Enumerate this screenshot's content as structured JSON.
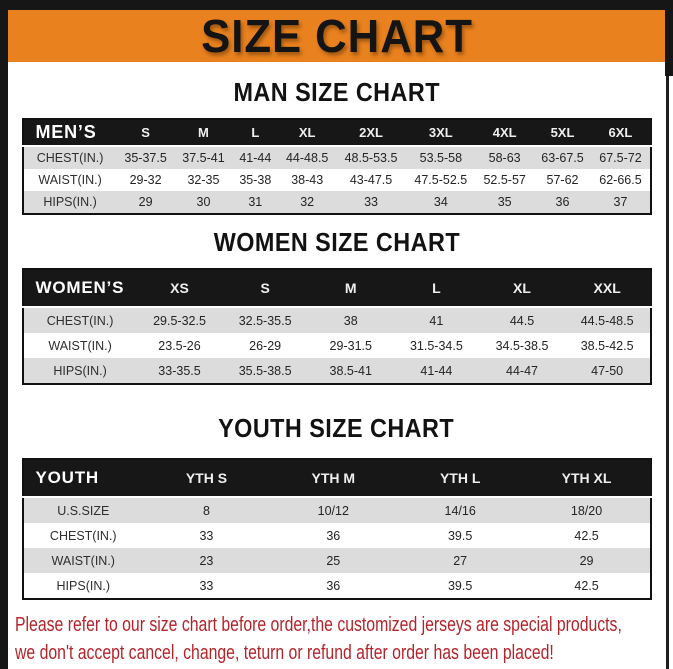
{
  "banner": {
    "title": "SIZE CHART",
    "bg_color": "#e8811e",
    "text_color": "#141414"
  },
  "colors": {
    "frame_black": "#161616",
    "header_black": "#171717",
    "row_gray": "#dcdcdc",
    "footer_red": "#b4232a"
  },
  "sections": {
    "men": {
      "heading": "MAN SIZE CHART",
      "header": [
        "MEN’S",
        "S",
        "M",
        "L",
        "XL",
        "2XL",
        "3XL",
        "4XL",
        "5XL",
        "6XL"
      ],
      "rows": [
        [
          "CHEST(IN.)",
          "35-37.5",
          "37.5-41",
          "41-44",
          "44-48.5",
          "48.5-53.5",
          "53.5-58",
          "58-63",
          "63-67.5",
          "67.5-72"
        ],
        [
          "WAIST(IN.)",
          "29-32",
          "32-35",
          "35-38",
          "38-43",
          "43-47.5",
          "47.5-52.5",
          "52.5-57",
          "57-62",
          "62-66.5"
        ],
        [
          "HIPS(IN.)",
          "29",
          "30",
          "31",
          "32",
          "33",
          "34",
          "35",
          "36",
          "37"
        ]
      ]
    },
    "women": {
      "heading": "WOMEN SIZE CHART",
      "header": [
        "WOMEN’S",
        "XS",
        "S",
        "M",
        "L",
        "XL",
        "XXL"
      ],
      "rows": [
        [
          "CHEST(IN.)",
          "29.5-32.5",
          "32.5-35.5",
          "38",
          "41",
          "44.5",
          "44.5-48.5"
        ],
        [
          "WAIST(IN.)",
          "23.5-26",
          "26-29",
          "29-31.5",
          "31.5-34.5",
          "34.5-38.5",
          "38.5-42.5"
        ],
        [
          "HIPS(IN.)",
          "33-35.5",
          "35.5-38.5",
          "38.5-41",
          "41-44",
          "44-47",
          "47-50"
        ]
      ]
    },
    "youth": {
      "heading": "YOUTH SIZE CHART",
      "header": [
        "YOUTH",
        "YTH S",
        "YTH M",
        "YTH L",
        "YTH XL"
      ],
      "rows": [
        [
          "U.S.SIZE",
          "8",
          "10/12",
          "14/16",
          "18/20"
        ],
        [
          "CHEST(IN.)",
          "33",
          "36",
          "39.5",
          "42.5"
        ],
        [
          "WAIST(IN.)",
          "23",
          "25",
          "27",
          "29"
        ],
        [
          "HIPS(IN.)",
          "33",
          "36",
          "39.5",
          "42.5"
        ]
      ]
    }
  },
  "footer": {
    "line1": "Please refer to our size chart before order,the customized jerseys are special products,",
    "line2": "we don't accept cancel, change, teturn or refund after order has been placed!"
  }
}
